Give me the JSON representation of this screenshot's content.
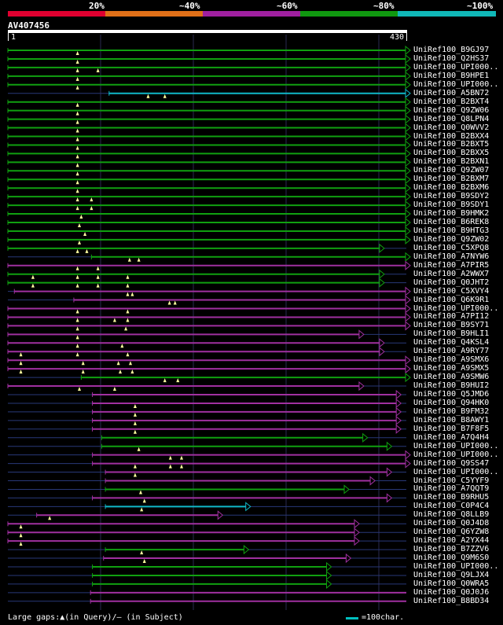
{
  "scale": {
    "labels": [
      "20%",
      "~40%",
      "~60%",
      "~80%",
      "~100%"
    ],
    "colors": [
      "#e00030",
      "#e07018",
      "#a020a0",
      "#109810",
      "#10b8b8"
    ]
  },
  "query": {
    "accession": "AV407456",
    "start": "1",
    "end": "430",
    "length": 430
  },
  "colors": {
    "green": "#10a010",
    "purple": "#a030a0",
    "cyan": "#10b8c8",
    "gap": "#283878",
    "marker": "#ffffa0"
  },
  "hits": [
    {
      "label": "UniRef100_B9GJ97",
      "color": "green",
      "start": 1,
      "end": 430,
      "arrow": true,
      "markers": [
        76
      ]
    },
    {
      "label": "UniRef100_Q2HS37",
      "color": "green",
      "start": 1,
      "end": 430,
      "arrow": true,
      "markers": [
        76
      ]
    },
    {
      "label": "UniRef100_UPI000..",
      "color": "green",
      "start": 1,
      "end": 430,
      "arrow": true,
      "markers": [
        76,
        98
      ]
    },
    {
      "label": "UniRef100_B9HPE1",
      "color": "green",
      "start": 1,
      "end": 430,
      "arrow": true,
      "markers": [
        76
      ]
    },
    {
      "label": "UniRef100_UPI000..",
      "color": "green",
      "start": 1,
      "end": 430,
      "arrow": true,
      "markers": [
        76
      ]
    },
    {
      "label": "UniRef100_A5BN72",
      "color": "cyan",
      "start": 110,
      "end": 430,
      "arrow": true,
      "markers": [
        152,
        170
      ]
    },
    {
      "label": "UniRef100_B2BXT4",
      "color": "green",
      "start": 1,
      "end": 430,
      "arrow": true,
      "markers": [
        76
      ]
    },
    {
      "label": "UniRef100_Q9ZW06",
      "color": "green",
      "start": 1,
      "end": 430,
      "arrow": true,
      "markers": [
        76
      ]
    },
    {
      "label": "UniRef100_Q8LPN4",
      "color": "green",
      "start": 1,
      "end": 430,
      "arrow": true,
      "markers": [
        76
      ]
    },
    {
      "label": "UniRef100_Q0WVV2",
      "color": "green",
      "start": 1,
      "end": 430,
      "arrow": true,
      "markers": [
        76
      ]
    },
    {
      "label": "UniRef100_B2BXX4",
      "color": "green",
      "start": 1,
      "end": 430,
      "arrow": true,
      "markers": [
        76
      ]
    },
    {
      "label": "UniRef100_B2BXT5",
      "color": "green",
      "start": 1,
      "end": 430,
      "arrow": true,
      "markers": [
        76
      ]
    },
    {
      "label": "UniRef100_B2BXX5",
      "color": "green",
      "start": 1,
      "end": 430,
      "arrow": true,
      "markers": [
        76
      ]
    },
    {
      "label": "UniRef100_B2BXN1",
      "color": "green",
      "start": 1,
      "end": 430,
      "arrow": true,
      "markers": [
        76
      ]
    },
    {
      "label": "UniRef100_Q9ZW07",
      "color": "green",
      "start": 1,
      "end": 430,
      "arrow": true,
      "markers": [
        76
      ]
    },
    {
      "label": "UniRef100_B2BXM7",
      "color": "green",
      "start": 1,
      "end": 430,
      "arrow": true,
      "markers": [
        76
      ]
    },
    {
      "label": "UniRef100_B2BXM6",
      "color": "green",
      "start": 1,
      "end": 430,
      "arrow": true,
      "markers": [
        76
      ]
    },
    {
      "label": "UniRef100_B9SDY2",
      "color": "green",
      "start": 1,
      "end": 430,
      "arrow": true,
      "markers": [
        76,
        91
      ]
    },
    {
      "label": "UniRef100_B9SDY1",
      "color": "green",
      "start": 1,
      "end": 430,
      "arrow": true,
      "markers": [
        76,
        91
      ]
    },
    {
      "label": "UniRef100_B9HMK2",
      "color": "green",
      "start": 1,
      "end": 430,
      "arrow": true,
      "markers": [
        80
      ]
    },
    {
      "label": "UniRef100_B6REK8",
      "color": "green",
      "start": 1,
      "end": 430,
      "arrow": true,
      "markers": [
        78
      ]
    },
    {
      "label": "UniRef100_B9HTG3",
      "color": "green",
      "start": 1,
      "end": 430,
      "arrow": true,
      "markers": [
        84
      ]
    },
    {
      "label": "UniRef100_Q9ZW02",
      "color": "green",
      "start": 1,
      "end": 430,
      "arrow": true,
      "markers": [
        78
      ]
    },
    {
      "label": "UniRef100_C5XPQ8",
      "color": "green",
      "start": 1,
      "end": 402,
      "arrow": true,
      "markers": [
        76,
        86
      ]
    },
    {
      "label": "UniRef100_A7NYW6",
      "color": "green",
      "start": 91,
      "end": 430,
      "arrow": true,
      "markers": [
        132,
        142
      ]
    },
    {
      "label": "UniRef100_A7PIR5",
      "color": "purple",
      "start": 1,
      "end": 430,
      "arrow": true,
      "markers": [
        76,
        98
      ]
    },
    {
      "label": "UniRef100_A2WWX7",
      "color": "green",
      "start": 1,
      "end": 402,
      "arrow": true,
      "markers": [
        28,
        76,
        98,
        130
      ]
    },
    {
      "label": "UniRef100_Q0JHT2",
      "color": "green",
      "start": 1,
      "end": 402,
      "arrow": true,
      "markers": [
        28,
        76,
        98,
        130
      ]
    },
    {
      "label": "UniRef100_C5XVY4",
      "color": "purple",
      "start": 8,
      "end": 430,
      "arrow": true,
      "markers": [
        130,
        135
      ]
    },
    {
      "label": "UniRef100_Q6K9R1",
      "color": "purple",
      "start": 72,
      "end": 430,
      "arrow": true,
      "markers": [
        175,
        181
      ]
    },
    {
      "label": "UniRef100_UPI000..",
      "color": "purple",
      "start": 1,
      "end": 430,
      "arrow": true,
      "markers": [
        76,
        130
      ]
    },
    {
      "label": "UniRef100_A7PI12",
      "color": "purple",
      "start": 1,
      "end": 430,
      "arrow": true,
      "markers": [
        76,
        116,
        130
      ]
    },
    {
      "label": "UniRef100_B9SY71",
      "color": "purple",
      "start": 1,
      "end": 430,
      "arrow": true,
      "markers": [
        76,
        128
      ]
    },
    {
      "label": "UniRef100_B9HLI1",
      "color": "purple",
      "start": 1,
      "end": 380,
      "arrow": true,
      "markers": [
        76
      ]
    },
    {
      "label": "UniRef100_Q4KSL4",
      "color": "purple",
      "start": 1,
      "end": 402,
      "arrow": true,
      "markers": [
        76,
        124
      ]
    },
    {
      "label": "UniRef100_A9RY77",
      "color": "purple",
      "start": 1,
      "end": 402,
      "arrow": true,
      "markers": [
        15,
        76,
        130
      ]
    },
    {
      "label": "UniRef100_A9SMX6",
      "color": "purple",
      "start": 1,
      "end": 430,
      "arrow": true,
      "markers": [
        15,
        82,
        120,
        133
      ]
    },
    {
      "label": "UniRef100_A9SMX5",
      "color": "purple",
      "start": 1,
      "end": 430,
      "arrow": true,
      "markers": [
        15,
        82,
        122,
        135
      ]
    },
    {
      "label": "UniRef100_A9SMW6",
      "color": "green",
      "start": 80,
      "end": 430,
      "arrow": true,
      "markers": [
        170,
        184
      ]
    },
    {
      "label": "UniRef100_B9HUI2",
      "color": "purple",
      "start": 1,
      "end": 380,
      "arrow": true,
      "markers": [
        78,
        116
      ]
    },
    {
      "label": "UniRef100_Q5JMD6",
      "color": "purple",
      "start": 92,
      "end": 420,
      "arrow": true,
      "markers": []
    },
    {
      "label": "UniRef100_Q94HK0",
      "color": "purple",
      "start": 92,
      "end": 420,
      "arrow": true,
      "markers": [
        138
      ]
    },
    {
      "label": "UniRef100_B9FM32",
      "color": "purple",
      "start": 92,
      "end": 420,
      "arrow": true,
      "markers": [
        138
      ]
    },
    {
      "label": "UniRef100_B8AWY1",
      "color": "purple",
      "start": 92,
      "end": 420,
      "arrow": true,
      "markers": [
        138
      ]
    },
    {
      "label": "UniRef100_B7F8F5",
      "color": "purple",
      "start": 92,
      "end": 420,
      "arrow": true,
      "markers": [
        138
      ]
    },
    {
      "label": "UniRef100_A7Q4H4",
      "color": "green",
      "start": 102,
      "end": 384,
      "arrow": true,
      "markers": []
    },
    {
      "label": "UniRef100_UPI000..",
      "color": "green",
      "start": 102,
      "end": 410,
      "arrow": true,
      "markers": [
        142
      ]
    },
    {
      "label": "UniRef100_UPI000..",
      "color": "purple",
      "start": 92,
      "end": 430,
      "arrow": true,
      "markers": [
        176,
        188
      ]
    },
    {
      "label": "UniRef100_Q9SS47",
      "color": "purple",
      "start": 92,
      "end": 430,
      "arrow": true,
      "markers": [
        138,
        176,
        188
      ]
    },
    {
      "label": "UniRef100_UPI000..",
      "color": "purple",
      "start": 106,
      "end": 410,
      "arrow": true,
      "markers": [
        138
      ]
    },
    {
      "label": "UniRef100_C5YYF9",
      "color": "purple",
      "start": 106,
      "end": 392,
      "arrow": true,
      "markers": []
    },
    {
      "label": "UniRef100_A7QQT9",
      "color": "green",
      "start": 106,
      "end": 364,
      "arrow": true,
      "markers": [
        144
      ]
    },
    {
      "label": "UniRef100_B9RHU5",
      "color": "purple",
      "start": 92,
      "end": 410,
      "arrow": true,
      "markers": [
        148
      ]
    },
    {
      "label": "UniRef100_C0P4C4",
      "color": "cyan",
      "start": 106,
      "end": 258,
      "arrow": true,
      "markers": [
        145
      ]
    },
    {
      "label": "UniRef100_Q8LLB9",
      "color": "purple",
      "start": 32,
      "end": 228,
      "arrow": true,
      "markers": [
        46
      ]
    },
    {
      "label": "UniRef100_Q0J4D8",
      "color": "purple",
      "start": 1,
      "end": 375,
      "arrow": true,
      "markers": [
        15
      ]
    },
    {
      "label": "UniRef100_Q6YZW8",
      "color": "purple",
      "start": 1,
      "end": 375,
      "arrow": true,
      "markers": [
        15
      ]
    },
    {
      "label": "UniRef100_A2YX44",
      "color": "purple",
      "start": 1,
      "end": 375,
      "arrow": true,
      "markers": [
        15
      ]
    },
    {
      "label": "UniRef100_B7ZZV6",
      "color": "green",
      "start": 106,
      "end": 256,
      "arrow": true,
      "markers": [
        145
      ]
    },
    {
      "label": "UniRef100_Q9M6S0",
      "color": "purple",
      "start": 104,
      "end": 366,
      "arrow": true,
      "markers": [
        148
      ]
    },
    {
      "label": "UniRef100_UPI000..",
      "color": "green",
      "start": 92,
      "end": 345,
      "arrow": true,
      "markers": []
    },
    {
      "label": "UniRef100_Q9LJX4",
      "color": "green",
      "start": 92,
      "end": 345,
      "arrow": true,
      "markers": []
    },
    {
      "label": "UniRef100_Q0WRA5",
      "color": "green",
      "start": 92,
      "end": 345,
      "arrow": true,
      "markers": []
    },
    {
      "label": "UniRef100_Q0J0J6",
      "color": "purple",
      "start": 90,
      "end": 430,
      "arrow": false,
      "markers": []
    },
    {
      "label": "UniRef100_B8BD34",
      "color": "purple",
      "start": 90,
      "end": 430,
      "arrow": false,
      "markers": []
    }
  ],
  "legend": {
    "text": "Large gaps:▲(in Query)/– (in Subject)",
    "scale_text": "=100char."
  }
}
